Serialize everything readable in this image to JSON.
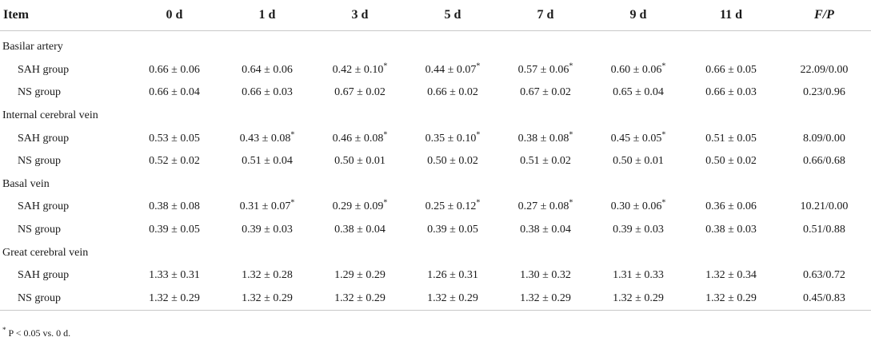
{
  "table": {
    "headers": [
      "Item",
      "0 d",
      "1 d",
      "3 d",
      "5 d",
      "7 d",
      "9 d",
      "11 d",
      "F/P"
    ],
    "sections": [
      {
        "title": "Basilar artery",
        "rows": [
          {
            "label": "SAH group",
            "cells": [
              {
                "v": "0.66 ± 0.06",
                "s": ""
              },
              {
                "v": "0.64 ± 0.06",
                "s": ""
              },
              {
                "v": "0.42 ± 0.10",
                "s": "*"
              },
              {
                "v": "0.44 ± 0.07",
                "s": "*"
              },
              {
                "v": "0.57 ± 0.06",
                "s": "*"
              },
              {
                "v": "0.60 ± 0.06",
                "s": "*"
              },
              {
                "v": "0.66 ± 0.05",
                "s": ""
              },
              {
                "v": "22.09/0.00",
                "s": ""
              }
            ]
          },
          {
            "label": "NS group",
            "cells": [
              {
                "v": "0.66 ± 0.04",
                "s": ""
              },
              {
                "v": "0.66 ± 0.03",
                "s": ""
              },
              {
                "v": "0.67 ± 0.02",
                "s": ""
              },
              {
                "v": "0.66 ± 0.02",
                "s": ""
              },
              {
                "v": "0.67 ± 0.02",
                "s": ""
              },
              {
                "v": "0.65 ± 0.04",
                "s": ""
              },
              {
                "v": "0.66 ± 0.03",
                "s": ""
              },
              {
                "v": "0.23/0.96",
                "s": ""
              }
            ]
          }
        ]
      },
      {
        "title": "Internal cerebral vein",
        "rows": [
          {
            "label": "SAH group",
            "cells": [
              {
                "v": "0.53 ± 0.05",
                "s": ""
              },
              {
                "v": "0.43 ± 0.08",
                "s": "*"
              },
              {
                "v": "0.46 ± 0.08",
                "s": "*"
              },
              {
                "v": "0.35 ± 0.10",
                "s": "*"
              },
              {
                "v": "0.38 ± 0.08",
                "s": "*"
              },
              {
                "v": "0.45 ± 0.05",
                "s": "*"
              },
              {
                "v": "0.51 ± 0.05",
                "s": ""
              },
              {
                "v": "8.09/0.00",
                "s": ""
              }
            ]
          },
          {
            "label": "NS group",
            "cells": [
              {
                "v": "0.52 ± 0.02",
                "s": ""
              },
              {
                "v": "0.51 ± 0.04",
                "s": ""
              },
              {
                "v": "0.50 ± 0.01",
                "s": ""
              },
              {
                "v": "0.50 ± 0.02",
                "s": ""
              },
              {
                "v": "0.51 ± 0.02",
                "s": ""
              },
              {
                "v": "0.50 ± 0.01",
                "s": ""
              },
              {
                "v": "0.50 ± 0.02",
                "s": ""
              },
              {
                "v": "0.66/0.68",
                "s": ""
              }
            ]
          }
        ]
      },
      {
        "title": "Basal vein",
        "rows": [
          {
            "label": "SAH group",
            "cells": [
              {
                "v": "0.38 ± 0.08",
                "s": ""
              },
              {
                "v": "0.31 ± 0.07",
                "s": "*"
              },
              {
                "v": "0.29 ± 0.09",
                "s": "*"
              },
              {
                "v": "0.25 ± 0.12",
                "s": "*"
              },
              {
                "v": "0.27 ± 0.08",
                "s": "*"
              },
              {
                "v": "0.30 ± 0.06",
                "s": "*"
              },
              {
                "v": "0.36 ± 0.06",
                "s": ""
              },
              {
                "v": "10.21/0.00",
                "s": ""
              }
            ]
          },
          {
            "label": "NS group",
            "cells": [
              {
                "v": "0.39 ± 0.05",
                "s": ""
              },
              {
                "v": "0.39 ± 0.03",
                "s": ""
              },
              {
                "v": "0.38 ± 0.04",
                "s": ""
              },
              {
                "v": "0.39 ± 0.05",
                "s": ""
              },
              {
                "v": "0.38 ± 0.04",
                "s": ""
              },
              {
                "v": "0.39 ± 0.03",
                "s": ""
              },
              {
                "v": "0.38 ± 0.03",
                "s": ""
              },
              {
                "v": "0.51/0.88",
                "s": ""
              }
            ]
          }
        ]
      },
      {
        "title": "Great cerebral vein",
        "rows": [
          {
            "label": "SAH group",
            "cells": [
              {
                "v": "1.33 ± 0.31",
                "s": ""
              },
              {
                "v": "1.32 ± 0.28",
                "s": ""
              },
              {
                "v": "1.29 ± 0.29",
                "s": ""
              },
              {
                "v": "1.26 ± 0.31",
                "s": ""
              },
              {
                "v": "1.30 ± 0.32",
                "s": ""
              },
              {
                "v": "1.31 ± 0.33",
                "s": ""
              },
              {
                "v": "1.32 ± 0.34",
                "s": ""
              },
              {
                "v": "0.63/0.72",
                "s": ""
              }
            ]
          },
          {
            "label": "NS group",
            "cells": [
              {
                "v": "1.32 ± 0.29",
                "s": ""
              },
              {
                "v": "1.32 ± 0.29",
                "s": ""
              },
              {
                "v": "1.32 ± 0.29",
                "s": ""
              },
              {
                "v": "1.32 ± 0.29",
                "s": ""
              },
              {
                "v": "1.32 ± 0.29",
                "s": ""
              },
              {
                "v": "1.32 ± 0.29",
                "s": ""
              },
              {
                "v": "1.32 ± 0.29",
                "s": ""
              },
              {
                "v": "0.45/0.83",
                "s": ""
              }
            ]
          }
        ]
      }
    ]
  },
  "footnote": {
    "mark": "*",
    "text": " P < 0.05 vs. 0 d."
  }
}
